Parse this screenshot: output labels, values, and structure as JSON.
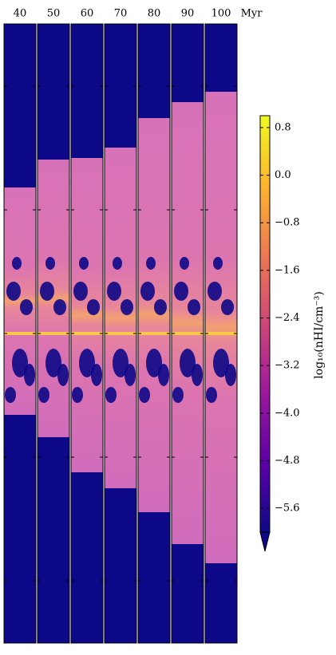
{
  "chart_data": {
    "type": "image-panels",
    "panel_labels": [
      "40",
      "50",
      "60",
      "70",
      "80",
      "90",
      "100"
    ],
    "time_unit": "Myr",
    "colorbar": {
      "label": "log₁₀(nHI/cm⁻³)",
      "clim": [
        -6.0,
        1.0
      ],
      "ticks": [
        0.8,
        {
          "value": 0.0,
          "label": "0.0"
        },
        {
          "value": -0.8,
          "label": "−0.8"
        },
        {
          "value": -1.6,
          "label": "−1.6"
        },
        {
          "value": -2.4,
          "label": "−2.4"
        },
        {
          "value": -3.2,
          "label": "−3.2"
        },
        {
          "value": -4.0,
          "label": "−4.0"
        },
        {
          "value": -4.8,
          "label": "−4.8"
        },
        {
          "value": -5.6,
          "label": "−5.6"
        }
      ],
      "colors": [
        "#0d0887",
        "#5c01a6",
        "#9c179e",
        "#cc4778",
        "#ed7953",
        "#fdb42f",
        "#f0f921"
      ],
      "extend": "min"
    }
  }
}
